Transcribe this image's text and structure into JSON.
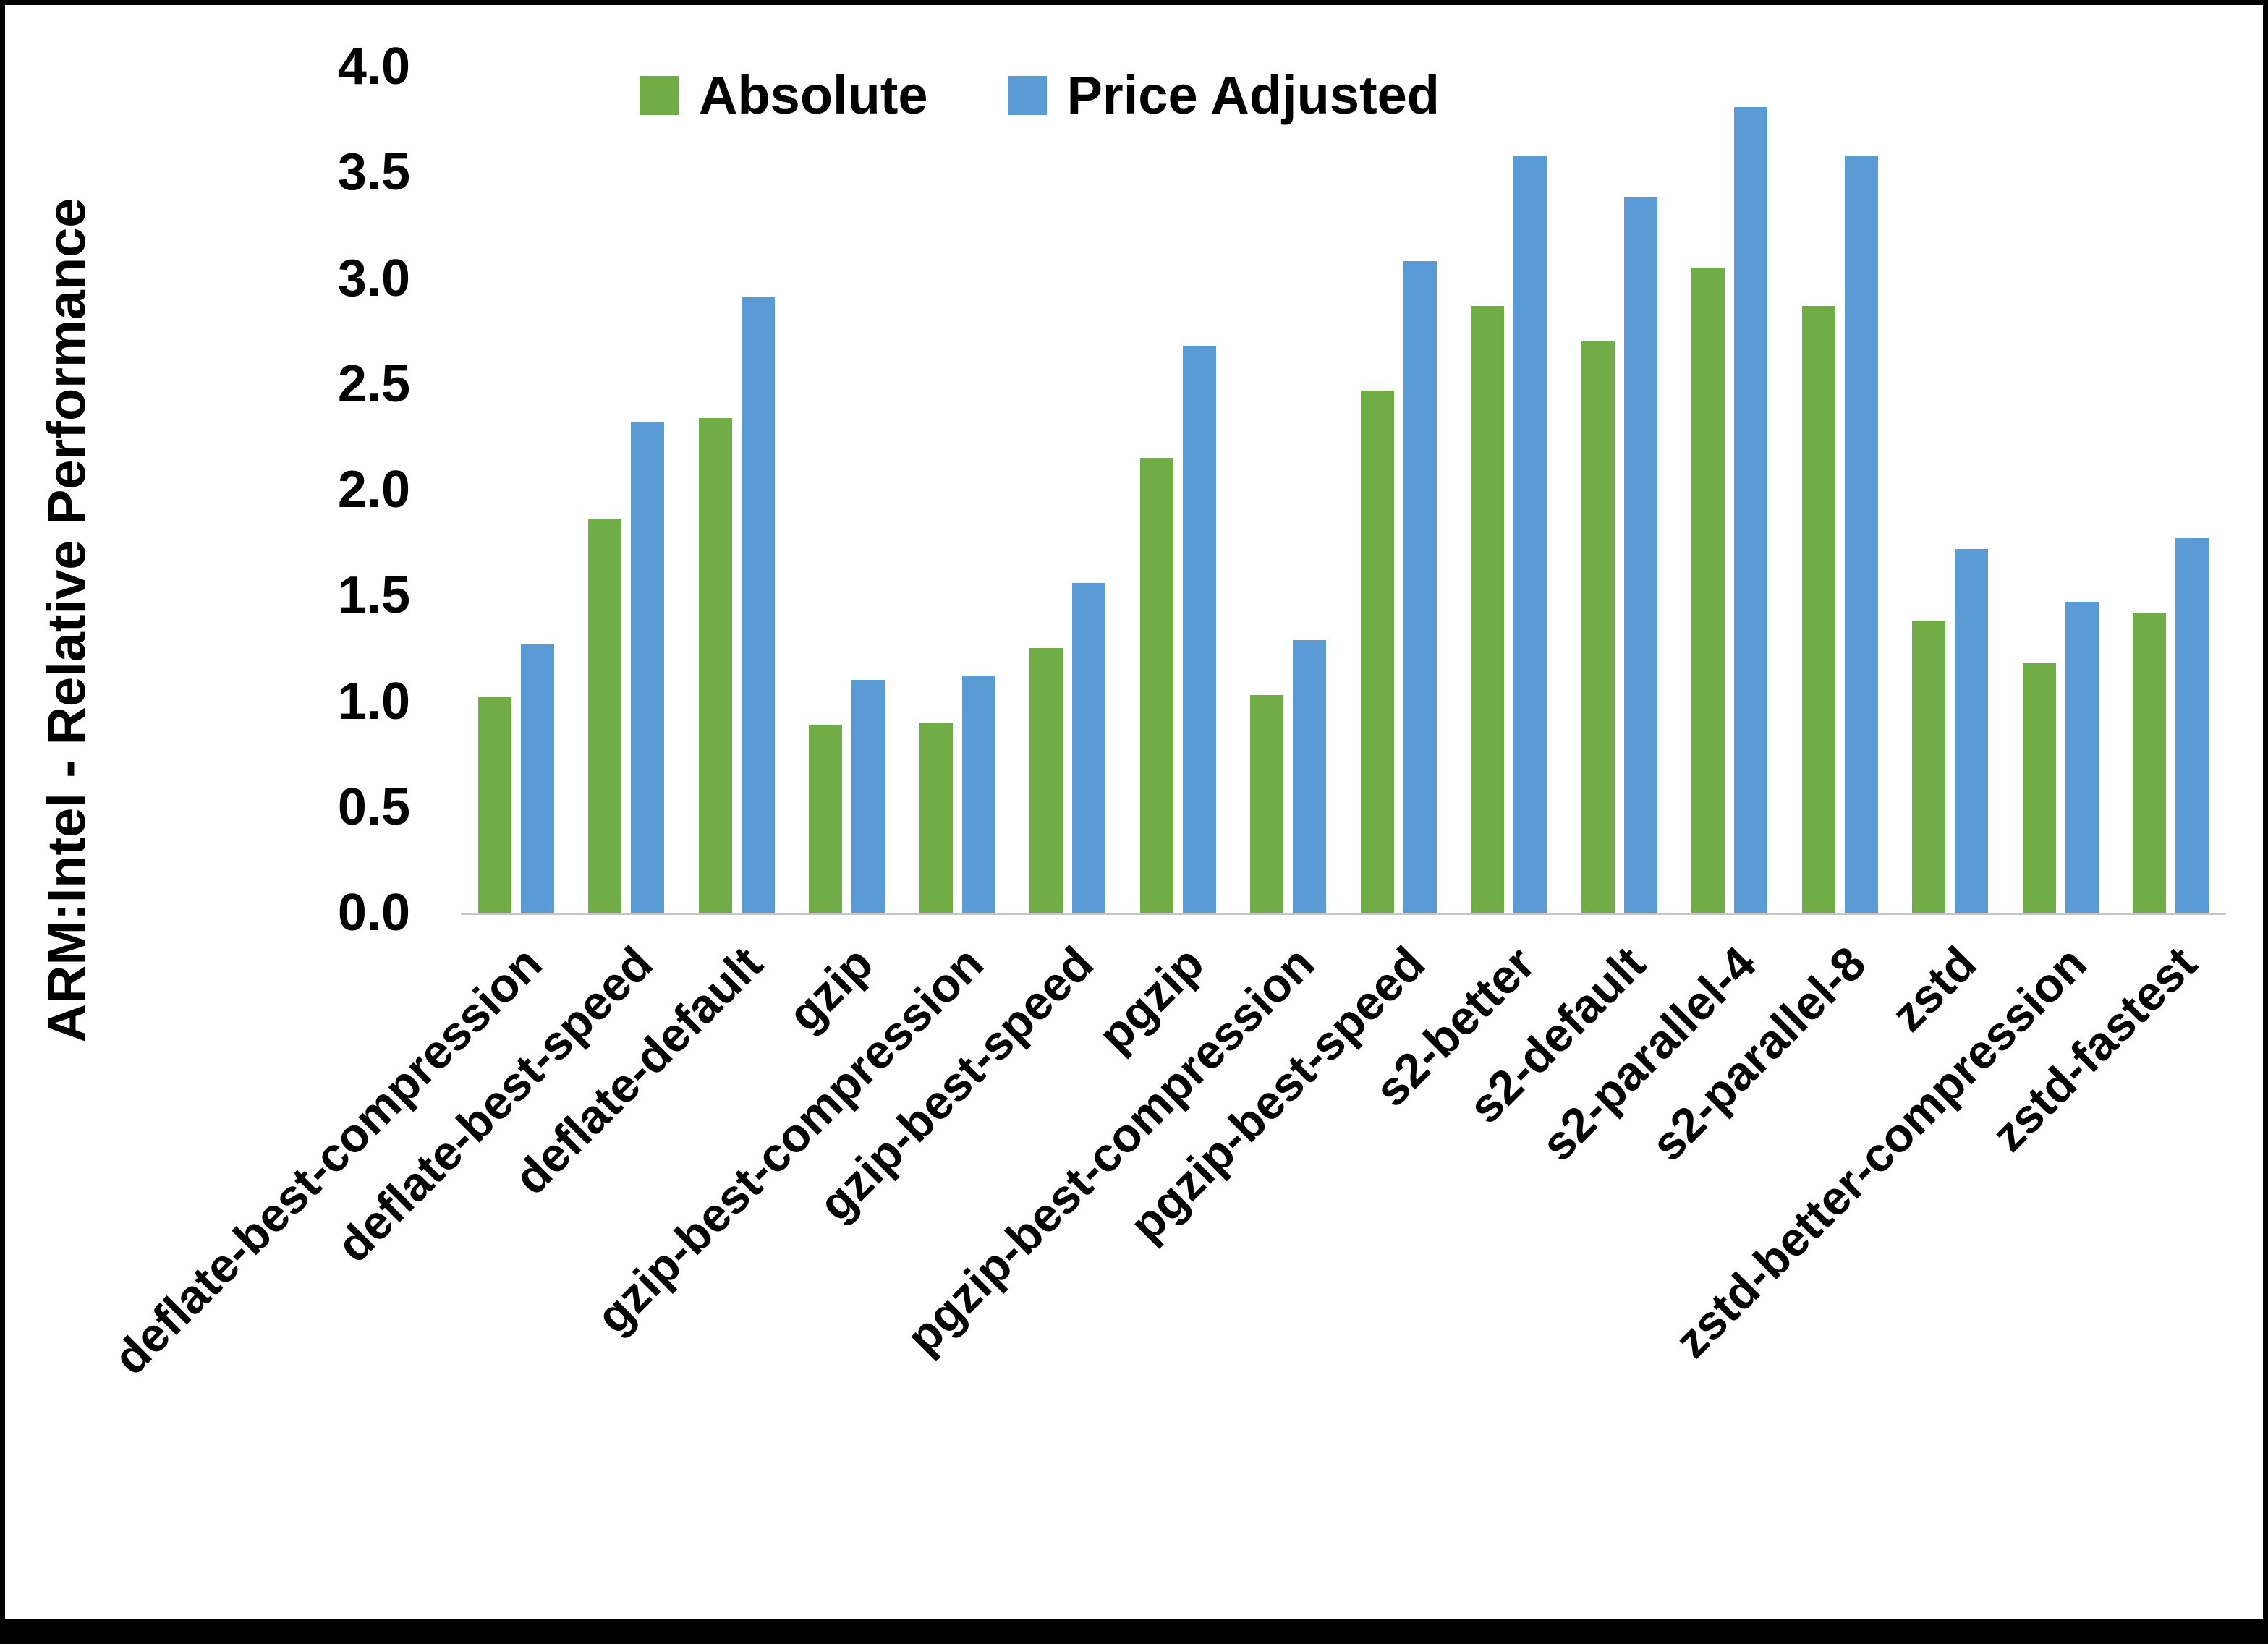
{
  "chart_data": {
    "type": "bar",
    "title": "",
    "xlabel": "",
    "ylabel": "ARM:Intel - Relative Performance",
    "ylim": [
      0.0,
      4.0
    ],
    "ytick_step": 0.5,
    "ytick_decimals": 1,
    "grid": false,
    "legend_position": "top-center",
    "categories": [
      "deflate-best-compression",
      "deflate-best-speed",
      "deflate-default",
      "gzip",
      "gzip-best-compression",
      "gzip-best-speed",
      "pgzip",
      "pgzip-best-compression",
      "pgzip-best-speed",
      "s2-better",
      "s2-default",
      "s2-parallel-4",
      "s2-parallel-8",
      "zstd",
      "zstd-better-compression",
      "zstd-fastest"
    ],
    "series": [
      {
        "name": "Absolute",
        "color": "#70AD47",
        "values": [
          1.02,
          1.86,
          2.34,
          0.89,
          0.9,
          1.25,
          2.15,
          1.03,
          2.47,
          2.87,
          2.7,
          3.05,
          2.87,
          1.38,
          1.18,
          1.42
        ]
      },
      {
        "name": "Price Adjusted",
        "color": "#5B9BD5",
        "values": [
          1.27,
          2.32,
          2.91,
          1.1,
          1.12,
          1.56,
          2.68,
          1.29,
          3.08,
          3.58,
          3.38,
          3.81,
          3.58,
          1.72,
          1.47,
          1.77
        ]
      }
    ]
  }
}
